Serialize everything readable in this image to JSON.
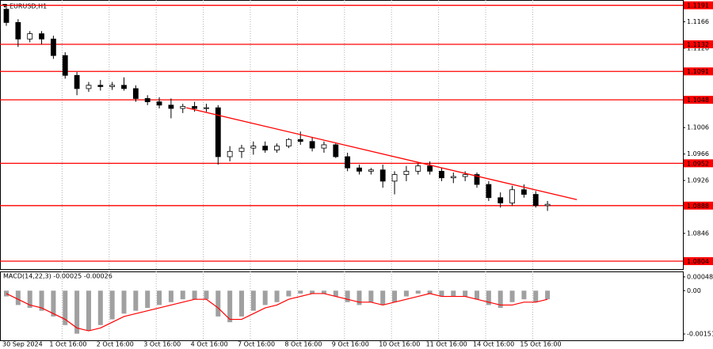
{
  "chart_data": {
    "type": "candlestick",
    "title": "EURUSD,H1",
    "open": [
      1.1185,
      1.1165,
      1.114,
      1.1148,
      1.114,
      1.1115,
      1.1085,
      1.1065,
      1.107,
      1.1068,
      1.107,
      1.1065,
      1.105,
      1.1045,
      1.104,
      1.1035,
      1.1038,
      1.1035,
      1.1036,
      1.0962,
      1.097,
      1.0975,
      1.0978,
      1.0972,
      1.0978,
      1.0988,
      1.0985,
      1.0975,
      1.098,
      1.0962,
      1.0945,
      1.094,
      1.0942,
      1.0925,
      1.0935,
      1.094,
      1.0948,
      1.094,
      1.093,
      1.0932,
      1.0935,
      1.092,
      1.09,
      1.0892,
      1.0912,
      1.0905,
      1.0888
    ],
    "high": [
      1.1192,
      1.117,
      1.1152,
      1.1152,
      1.1145,
      1.112,
      1.109,
      1.1075,
      1.1078,
      1.1075,
      1.1082,
      1.107,
      1.1055,
      1.1052,
      1.105,
      1.1042,
      1.1045,
      1.1042,
      1.104,
      1.0978,
      1.098,
      1.0985,
      1.0985,
      1.0982,
      1.099,
      1.1,
      1.0992,
      1.0985,
      1.0982,
      1.0968,
      1.095,
      1.0945,
      1.095,
      1.094,
      1.0948,
      1.0952,
      1.0955,
      1.0945,
      1.0938,
      1.094,
      1.0938,
      1.0925,
      1.0908,
      1.0918,
      1.092,
      1.091,
      1.0895
    ],
    "low": [
      1.116,
      1.1128,
      1.1135,
      1.1132,
      1.111,
      1.108,
      1.1055,
      1.106,
      1.1062,
      1.1063,
      1.1062,
      1.1045,
      1.104,
      1.1035,
      1.102,
      1.1028,
      1.103,
      1.103,
      1.095,
      1.0955,
      1.096,
      1.0965,
      1.0968,
      1.0968,
      1.0975,
      1.098,
      1.097,
      1.0968,
      1.096,
      1.094,
      1.0935,
      1.0935,
      1.0915,
      1.0905,
      1.0925,
      1.0935,
      1.0935,
      1.0925,
      1.0922,
      1.0925,
      1.0915,
      1.0895,
      1.0885,
      1.0888,
      1.09,
      1.0885,
      1.088
    ],
    "close": [
      1.1165,
      1.114,
      1.1148,
      1.114,
      1.1115,
      1.1085,
      1.1065,
      1.107,
      1.1068,
      1.107,
      1.1065,
      1.105,
      1.1045,
      1.104,
      1.1035,
      1.1038,
      1.1035,
      1.1036,
      1.0962,
      1.097,
      1.0975,
      1.0978,
      1.0972,
      1.0978,
      1.0988,
      1.0985,
      1.0975,
      1.098,
      1.0962,
      1.0945,
      1.094,
      1.0942,
      1.0925,
      1.0935,
      1.094,
      1.0948,
      1.094,
      1.093,
      1.0932,
      1.0935,
      1.092,
      1.09,
      1.0892,
      1.0912,
      1.0905,
      1.0888,
      1.089
    ],
    "ylim": [
      1.0792,
      1.1199
    ],
    "yticks": [
      1.1166,
      1.1126,
      1.1006,
      1.0966,
      1.0926,
      1.0846
    ],
    "levels": [
      1.1191,
      1.1132,
      1.1091,
      1.1048,
      1.0952,
      1.0888,
      1.0804
    ],
    "level_color": "#ff0000",
    "trendline": {
      "x": [
        15.3,
        48.5
      ],
      "y": [
        1.1036,
        1.0897
      ],
      "color": "#ff0000"
    },
    "x_labels": [
      "30 Sep 2024",
      "1 Oct 16:00",
      "2 Oct 16:00",
      "3 Oct 16:00",
      "4 Oct 16:00",
      "7 Oct 16:00",
      "8 Oct 16:00",
      "9 Oct 16:00",
      "10 Oct 16:00",
      "11 Oct 16:00",
      "14 Oct 16:00",
      "15 Oct 16:00"
    ],
    "macd": {
      "label": "MACD(14,22,3) -0.00025 -0.00026",
      "histogram": [
        -0.0002,
        -0.0005,
        -0.0006,
        -0.0007,
        -0.0009,
        -0.0012,
        -0.0015,
        -0.0014,
        -0.0012,
        -0.001,
        -0.0008,
        -0.0007,
        -0.0006,
        -0.0005,
        -0.0004,
        -0.0003,
        -0.0003,
        -0.0003,
        -0.0009,
        -0.0011,
        -0.0009,
        -0.0007,
        -0.0005,
        -0.0004,
        -0.0002,
        -0.0001,
        -0.0001,
        -0.0001,
        -0.0002,
        -0.0004,
        -0.0005,
        -0.0004,
        -0.0005,
        -0.0004,
        -0.0002,
        -0.0001,
        -0.0001,
        -0.0002,
        -0.0002,
        -0.0002,
        -0.0003,
        -0.0005,
        -0.0006,
        -0.0004,
        -0.0003,
        -0.0004,
        -0.0003
      ],
      "signal": [
        -0.0001,
        -0.0003,
        -0.0005,
        -0.0006,
        -0.0008,
        -0.001,
        -0.0013,
        -0.0014,
        -0.0013,
        -0.0011,
        -0.0009,
        -0.0008,
        -0.0007,
        -0.0006,
        -0.0005,
        -0.0004,
        -0.0003,
        -0.0003,
        -0.0006,
        -0.001,
        -0.001,
        -0.0008,
        -0.0006,
        -0.0005,
        -0.0003,
        -0.0002,
        -0.0001,
        -0.0001,
        -0.0002,
        -0.0003,
        -0.0004,
        -0.0004,
        -0.0005,
        -0.0004,
        -0.0003,
        -0.0002,
        -0.0001,
        -0.0002,
        -0.0002,
        -0.0002,
        -0.0003,
        -0.0004,
        -0.0005,
        -0.0005,
        -0.0004,
        -0.0004,
        -0.0003
      ],
      "hist_color": "#a0a0a0",
      "signal_color": "#ff0000",
      "ylim": [
        -0.00173,
        0.00067
      ],
      "yticks": [
        0.00048,
        {
          "value": 0,
          "label": "0.00"
        },
        -0.00151
      ]
    }
  }
}
